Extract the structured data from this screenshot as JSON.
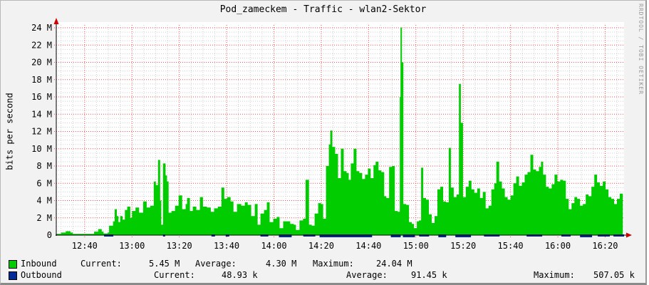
{
  "window": {
    "title": "Pod_zameckem - Traffic - wlan2-Sektor",
    "watermark": "RRDTOOL / TOBI OETIKER"
  },
  "chart_data": {
    "type": "area",
    "title": "Pod_zameckem - Traffic - wlan2-Sektor",
    "xlabel": "",
    "ylabel": "bits per second",
    "ylim": [
      0,
      24
    ],
    "y_unit": "Mbit/s",
    "grid": "dotted, minor 0.5M / 5min, major 2M / 20min",
    "legend_position": "bottom-left",
    "x_range": {
      "start_label": "12:28",
      "end_label": "16:28",
      "minutes": 240
    },
    "y_ticks": [
      {
        "v": 0,
        "label": "0"
      },
      {
        "v": 2,
        "label": "2 M"
      },
      {
        "v": 4,
        "label": "4 M"
      },
      {
        "v": 6,
        "label": "6 M"
      },
      {
        "v": 8,
        "label": "8 M"
      },
      {
        "v": 10,
        "label": "10 M"
      },
      {
        "v": 12,
        "label": "12 M"
      },
      {
        "v": 14,
        "label": "14 M"
      },
      {
        "v": 16,
        "label": "16 M"
      },
      {
        "v": 18,
        "label": "18 M"
      },
      {
        "v": 20,
        "label": "20 M"
      },
      {
        "v": 22,
        "label": "22 M"
      },
      {
        "v": 24,
        "label": "24 M"
      }
    ],
    "x_ticks": [
      {
        "m": 12,
        "label": "12:40"
      },
      {
        "m": 32,
        "label": "13:00"
      },
      {
        "m": 52,
        "label": "13:20"
      },
      {
        "m": 72,
        "label": "13:40"
      },
      {
        "m": 92,
        "label": "14:00"
      },
      {
        "m": 112,
        "label": "14:20"
      },
      {
        "m": 132,
        "label": "14:40"
      },
      {
        "m": 152,
        "label": "15:00"
      },
      {
        "m": 172,
        "label": "15:20"
      },
      {
        "m": 192,
        "label": "15:40"
      },
      {
        "m": 212,
        "label": "16:00"
      },
      {
        "m": 232,
        "label": "16:20"
      }
    ],
    "series": [
      {
        "name": "Inbound",
        "color": "#00CC00",
        "current": "5.45 M",
        "average": "4.30 M",
        "maximum": "24.04 M",
        "points_t_mbps": [
          [
            0,
            0.15
          ],
          [
            2,
            0.3
          ],
          [
            4,
            0.45
          ],
          [
            6,
            0.3
          ],
          [
            7,
            0.15
          ],
          [
            12,
            0.15
          ],
          [
            16,
            0.4
          ],
          [
            17.7,
            0.7
          ],
          [
            19.2,
            0.4
          ],
          [
            20,
            0.2
          ],
          [
            21.7,
            0.3
          ],
          [
            22.3,
            1.1
          ],
          [
            24,
            1.6
          ],
          [
            24.7,
            3.0
          ],
          [
            25.6,
            2.2
          ],
          [
            26.3,
            1.5
          ],
          [
            27,
            2.2
          ],
          [
            28,
            1.8
          ],
          [
            29,
            2.9
          ],
          [
            30,
            3.3
          ],
          [
            31.3,
            2.0
          ],
          [
            32,
            2.8
          ],
          [
            33.5,
            3.2
          ],
          [
            35,
            2.6
          ],
          [
            36.7,
            3.9
          ],
          [
            38.2,
            3.2
          ],
          [
            39.7,
            3.4
          ],
          [
            41.2,
            6.2
          ],
          [
            42.1,
            5.8
          ],
          [
            43,
            8.7
          ],
          [
            43.9,
            4.0
          ],
          [
            44.4,
            1.2
          ],
          [
            45.1,
            8.3
          ],
          [
            46.2,
            6.9
          ],
          [
            46.8,
            6.2
          ],
          [
            47.5,
            2.6
          ],
          [
            48.7,
            2.8
          ],
          [
            50.2,
            3.4
          ],
          [
            51.7,
            4.6
          ],
          [
            53.2,
            3.0
          ],
          [
            54.7,
            3.6
          ],
          [
            55.3,
            4.3
          ],
          [
            56.5,
            2.8
          ],
          [
            57.7,
            3.3
          ],
          [
            59.2,
            2.9
          ],
          [
            60.7,
            4.4
          ],
          [
            62,
            3.3
          ],
          [
            63.7,
            3.2
          ],
          [
            65.3,
            2.7
          ],
          [
            66.7,
            3.1
          ],
          [
            68.3,
            3.3
          ],
          [
            69.8,
            5.5
          ],
          [
            71,
            4.2
          ],
          [
            72.2,
            4.4
          ],
          [
            73.7,
            3.9
          ],
          [
            74.9,
            2.7
          ],
          [
            76.4,
            3.6
          ],
          [
            78.2,
            3.4
          ],
          [
            79.7,
            3.8
          ],
          [
            80.9,
            3.5
          ],
          [
            82.4,
            2.2
          ],
          [
            83.9,
            3.6
          ],
          [
            85.1,
            1.2
          ],
          [
            86.3,
            2.5
          ],
          [
            87.8,
            2.9
          ],
          [
            89,
            3.8
          ],
          [
            90.2,
            1.5
          ],
          [
            91.7,
            1.9
          ],
          [
            93.2,
            2.1
          ],
          [
            94.4,
            0.8
          ],
          [
            95.9,
            1.6
          ],
          [
            97.4,
            1.6
          ],
          [
            98.9,
            1.3
          ],
          [
            100.4,
            1.2
          ],
          [
            101.3,
            0.6
          ],
          [
            102.8,
            1.7
          ],
          [
            104.3,
            1.9
          ],
          [
            105.4,
            6.4
          ],
          [
            106.8,
            1.2
          ],
          [
            108,
            1.1
          ],
          [
            109.2,
            2.5
          ],
          [
            110.7,
            3.7
          ],
          [
            111.9,
            3.6
          ],
          [
            112.8,
            1.9
          ],
          [
            114,
            8.0
          ],
          [
            115.2,
            10.5
          ],
          [
            115.8,
            12.1
          ],
          [
            116.7,
            10.2
          ],
          [
            117.9,
            9.4
          ],
          [
            119.1,
            6.6
          ],
          [
            120.3,
            10.0
          ],
          [
            121.5,
            7.4
          ],
          [
            122.7,
            7.2
          ],
          [
            123.6,
            6.4
          ],
          [
            124.5,
            8.3
          ],
          [
            125.7,
            10.0
          ],
          [
            126.9,
            7.4
          ],
          [
            128.1,
            7.2
          ],
          [
            129.3,
            6.5
          ],
          [
            130.5,
            7.0
          ],
          [
            131.7,
            7.7
          ],
          [
            132.9,
            6.6
          ],
          [
            134.1,
            8.1
          ],
          [
            135,
            8.5
          ],
          [
            136.2,
            7.5
          ],
          [
            137.4,
            7.3
          ],
          [
            138.6,
            4.5
          ],
          [
            139.5,
            4.3
          ],
          [
            140.7,
            7.9
          ],
          [
            141.9,
            8.0
          ],
          [
            143.1,
            2.8
          ],
          [
            144.3,
            2.7
          ],
          [
            145.2,
            16.0
          ],
          [
            145.5,
            24.04
          ],
          [
            146.1,
            20.0
          ],
          [
            146.7,
            3.6
          ],
          [
            147.9,
            3.5
          ],
          [
            149.1,
            1.5
          ],
          [
            150.3,
            1.3
          ],
          [
            151.2,
            0.8
          ],
          [
            152.4,
            1.6
          ],
          [
            153.3,
            1.7
          ],
          [
            154.2,
            7.8
          ],
          [
            155.1,
            4.3
          ],
          [
            156.3,
            4.1
          ],
          [
            157.5,
            2.4
          ],
          [
            158.7,
            1.4
          ],
          [
            159.9,
            2.2
          ],
          [
            161.1,
            5.3
          ],
          [
            162.3,
            5.6
          ],
          [
            163.5,
            3.9
          ],
          [
            164.7,
            3.8
          ],
          [
            165.9,
            10.1
          ],
          [
            166.8,
            5.5
          ],
          [
            168,
            4.4
          ],
          [
            169.2,
            4.7
          ],
          [
            170.2,
            17.5
          ],
          [
            171,
            13.0
          ],
          [
            171.9,
            4.4
          ],
          [
            173.1,
            5.6
          ],
          [
            174.3,
            6.3
          ],
          [
            175.5,
            5.3
          ],
          [
            176.7,
            4.9
          ],
          [
            177.9,
            5.4
          ],
          [
            179.1,
            4.3
          ],
          [
            180.3,
            5.0
          ],
          [
            181.5,
            3.1
          ],
          [
            182.7,
            3.4
          ],
          [
            183.9,
            5.3
          ],
          [
            185.1,
            6.0
          ],
          [
            186,
            8.5
          ],
          [
            187.2,
            6.2
          ],
          [
            188.4,
            5.4
          ],
          [
            189.6,
            4.4
          ],
          [
            190.8,
            4.1
          ],
          [
            192,
            4.6
          ],
          [
            193.2,
            6.0
          ],
          [
            194.4,
            6.8
          ],
          [
            195.6,
            5.7
          ],
          [
            196.8,
            6.1
          ],
          [
            198,
            7.0
          ],
          [
            199.2,
            7.3
          ],
          [
            200.4,
            9.3
          ],
          [
            201.6,
            7.6
          ],
          [
            202.8,
            7.4
          ],
          [
            204,
            7.9
          ],
          [
            204.9,
            8.5
          ],
          [
            205.8,
            7.0
          ],
          [
            207,
            5.6
          ],
          [
            208.2,
            5.4
          ],
          [
            209.4,
            5.9
          ],
          [
            210.6,
            7.0
          ],
          [
            211.8,
            6.2
          ],
          [
            213,
            6.4
          ],
          [
            214.2,
            6.3
          ],
          [
            215.4,
            4.2
          ],
          [
            216.6,
            3.0
          ],
          [
            217.8,
            3.7
          ],
          [
            219,
            4.4
          ],
          [
            220.2,
            4.2
          ],
          [
            221.4,
            3.4
          ],
          [
            222.6,
            3.6
          ],
          [
            223.8,
            4.7
          ],
          [
            225,
            4.5
          ],
          [
            226.2,
            5.6
          ],
          [
            227.4,
            7.0
          ],
          [
            228.6,
            6.1
          ],
          [
            229.8,
            5.7
          ],
          [
            231,
            6.2
          ],
          [
            232.2,
            5.3
          ],
          [
            233.4,
            4.4
          ],
          [
            234.6,
            4.2
          ],
          [
            235.8,
            3.6
          ],
          [
            237,
            4.2
          ],
          [
            238.2,
            4.8
          ],
          [
            239.5,
            5.45
          ]
        ]
      },
      {
        "name": "Outbound",
        "color": "#002A97",
        "current": "48.93 k",
        "average": "91.45 k",
        "maximum": "507.05 k",
        "below_axis_segments": [
          [
            20.2,
            24.1,
            2
          ],
          [
            45.1,
            46,
            2
          ],
          [
            65.6,
            67.1,
            2
          ],
          [
            71.6,
            73.1,
            2
          ],
          [
            86.3,
            89.6,
            2
          ],
          [
            94.1,
            99.5,
            3
          ],
          [
            104.4,
            109.5,
            2
          ],
          [
            111.3,
            133.5,
            3
          ],
          [
            141.4,
            145.6,
            3
          ],
          [
            146.5,
            151.6,
            3
          ],
          [
            153.4,
            157.6,
            2
          ],
          [
            161.5,
            164.8,
            3
          ],
          [
            168.7,
            175.3,
            3
          ],
          [
            180.8,
            187.4,
            2
          ],
          [
            198.8,
            205.4,
            2
          ],
          [
            213.5,
            217.4,
            2
          ],
          [
            221.4,
            226.5,
            3
          ],
          [
            228.9,
            234,
            2
          ],
          [
            235.5,
            240,
            2
          ]
        ]
      }
    ]
  },
  "legend": {
    "rows": [
      {
        "swatch": "#00CC00",
        "name": "Inbound",
        "current_label": "Current:",
        "current": "5.45 M",
        "average_label": "Average:",
        "average": "4.30 M",
        "maximum_label": "Maximum:",
        "maximum": "24.04 M"
      },
      {
        "swatch": "#002A97",
        "name": "Outbound",
        "current_label": "Current:",
        "current": "48.93 k",
        "average_label": "Average:",
        "average": "91.45 k",
        "maximum_label": "Maximum:",
        "maximum": "507.05 k"
      }
    ]
  },
  "colors": {
    "inbound": "#00CC00",
    "outbound": "#002A97",
    "major_grid": "#fa4b4b",
    "minor_grid": "#cfcfcf",
    "axis": "#000000",
    "arrow": "#d00000",
    "canvas": "#f2f2f2",
    "plot_bg": "#ffffff"
  }
}
